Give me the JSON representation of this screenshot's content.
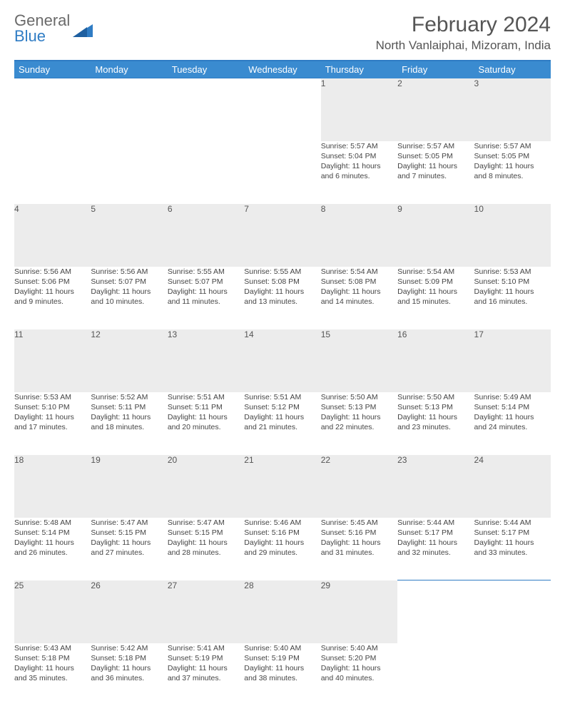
{
  "brand": {
    "first": "General",
    "second": "Blue"
  },
  "colors": {
    "brand_gray": "#6a6a6a",
    "brand_blue": "#2f7cc4",
    "header_bg": "#3a8bd0",
    "daynum_bg": "#ececec",
    "text": "#444444",
    "white": "#ffffff"
  },
  "typography": {
    "month_fontsize": 30,
    "location_fontsize": 17,
    "weekday_fontsize": 13,
    "daynum_fontsize": 12,
    "cell_fontsize": 10.5
  },
  "title": "February 2024",
  "location": "North Vanlaiphai, Mizoram, India",
  "weekdays": [
    "Sunday",
    "Monday",
    "Tuesday",
    "Wednesday",
    "Thursday",
    "Friday",
    "Saturday"
  ],
  "weeks": [
    {
      "nums": [
        "",
        "",
        "",
        "",
        "1",
        "2",
        "3"
      ],
      "cells": [
        {
          "empty": true
        },
        {
          "empty": true
        },
        {
          "empty": true
        },
        {
          "empty": true
        },
        {
          "sunrise": "Sunrise: 5:57 AM",
          "sunset": "Sunset: 5:04 PM",
          "day1": "Daylight: 11 hours",
          "day2": "and 6 minutes."
        },
        {
          "sunrise": "Sunrise: 5:57 AM",
          "sunset": "Sunset: 5:05 PM",
          "day1": "Daylight: 11 hours",
          "day2": "and 7 minutes."
        },
        {
          "sunrise": "Sunrise: 5:57 AM",
          "sunset": "Sunset: 5:05 PM",
          "day1": "Daylight: 11 hours",
          "day2": "and 8 minutes."
        }
      ]
    },
    {
      "nums": [
        "4",
        "5",
        "6",
        "7",
        "8",
        "9",
        "10"
      ],
      "cells": [
        {
          "sunrise": "Sunrise: 5:56 AM",
          "sunset": "Sunset: 5:06 PM",
          "day1": "Daylight: 11 hours",
          "day2": "and 9 minutes."
        },
        {
          "sunrise": "Sunrise: 5:56 AM",
          "sunset": "Sunset: 5:07 PM",
          "day1": "Daylight: 11 hours",
          "day2": "and 10 minutes."
        },
        {
          "sunrise": "Sunrise: 5:55 AM",
          "sunset": "Sunset: 5:07 PM",
          "day1": "Daylight: 11 hours",
          "day2": "and 11 minutes."
        },
        {
          "sunrise": "Sunrise: 5:55 AM",
          "sunset": "Sunset: 5:08 PM",
          "day1": "Daylight: 11 hours",
          "day2": "and 13 minutes."
        },
        {
          "sunrise": "Sunrise: 5:54 AM",
          "sunset": "Sunset: 5:08 PM",
          "day1": "Daylight: 11 hours",
          "day2": "and 14 minutes."
        },
        {
          "sunrise": "Sunrise: 5:54 AM",
          "sunset": "Sunset: 5:09 PM",
          "day1": "Daylight: 11 hours",
          "day2": "and 15 minutes."
        },
        {
          "sunrise": "Sunrise: 5:53 AM",
          "sunset": "Sunset: 5:10 PM",
          "day1": "Daylight: 11 hours",
          "day2": "and 16 minutes."
        }
      ]
    },
    {
      "nums": [
        "11",
        "12",
        "13",
        "14",
        "15",
        "16",
        "17"
      ],
      "cells": [
        {
          "sunrise": "Sunrise: 5:53 AM",
          "sunset": "Sunset: 5:10 PM",
          "day1": "Daylight: 11 hours",
          "day2": "and 17 minutes."
        },
        {
          "sunrise": "Sunrise: 5:52 AM",
          "sunset": "Sunset: 5:11 PM",
          "day1": "Daylight: 11 hours",
          "day2": "and 18 minutes."
        },
        {
          "sunrise": "Sunrise: 5:51 AM",
          "sunset": "Sunset: 5:11 PM",
          "day1": "Daylight: 11 hours",
          "day2": "and 20 minutes."
        },
        {
          "sunrise": "Sunrise: 5:51 AM",
          "sunset": "Sunset: 5:12 PM",
          "day1": "Daylight: 11 hours",
          "day2": "and 21 minutes."
        },
        {
          "sunrise": "Sunrise: 5:50 AM",
          "sunset": "Sunset: 5:13 PM",
          "day1": "Daylight: 11 hours",
          "day2": "and 22 minutes."
        },
        {
          "sunrise": "Sunrise: 5:50 AM",
          "sunset": "Sunset: 5:13 PM",
          "day1": "Daylight: 11 hours",
          "day2": "and 23 minutes."
        },
        {
          "sunrise": "Sunrise: 5:49 AM",
          "sunset": "Sunset: 5:14 PM",
          "day1": "Daylight: 11 hours",
          "day2": "and 24 minutes."
        }
      ]
    },
    {
      "nums": [
        "18",
        "19",
        "20",
        "21",
        "22",
        "23",
        "24"
      ],
      "cells": [
        {
          "sunrise": "Sunrise: 5:48 AM",
          "sunset": "Sunset: 5:14 PM",
          "day1": "Daylight: 11 hours",
          "day2": "and 26 minutes."
        },
        {
          "sunrise": "Sunrise: 5:47 AM",
          "sunset": "Sunset: 5:15 PM",
          "day1": "Daylight: 11 hours",
          "day2": "and 27 minutes."
        },
        {
          "sunrise": "Sunrise: 5:47 AM",
          "sunset": "Sunset: 5:15 PM",
          "day1": "Daylight: 11 hours",
          "day2": "and 28 minutes."
        },
        {
          "sunrise": "Sunrise: 5:46 AM",
          "sunset": "Sunset: 5:16 PM",
          "day1": "Daylight: 11 hours",
          "day2": "and 29 minutes."
        },
        {
          "sunrise": "Sunrise: 5:45 AM",
          "sunset": "Sunset: 5:16 PM",
          "day1": "Daylight: 11 hours",
          "day2": "and 31 minutes."
        },
        {
          "sunrise": "Sunrise: 5:44 AM",
          "sunset": "Sunset: 5:17 PM",
          "day1": "Daylight: 11 hours",
          "day2": "and 32 minutes."
        },
        {
          "sunrise": "Sunrise: 5:44 AM",
          "sunset": "Sunset: 5:17 PM",
          "day1": "Daylight: 11 hours",
          "day2": "and 33 minutes."
        }
      ]
    },
    {
      "nums": [
        "25",
        "26",
        "27",
        "28",
        "29",
        "",
        ""
      ],
      "cells": [
        {
          "sunrise": "Sunrise: 5:43 AM",
          "sunset": "Sunset: 5:18 PM",
          "day1": "Daylight: 11 hours",
          "day2": "and 35 minutes."
        },
        {
          "sunrise": "Sunrise: 5:42 AM",
          "sunset": "Sunset: 5:18 PM",
          "day1": "Daylight: 11 hours",
          "day2": "and 36 minutes."
        },
        {
          "sunrise": "Sunrise: 5:41 AM",
          "sunset": "Sunset: 5:19 PM",
          "day1": "Daylight: 11 hours",
          "day2": "and 37 minutes."
        },
        {
          "sunrise": "Sunrise: 5:40 AM",
          "sunset": "Sunset: 5:19 PM",
          "day1": "Daylight: 11 hours",
          "day2": "and 38 minutes."
        },
        {
          "sunrise": "Sunrise: 5:40 AM",
          "sunset": "Sunset: 5:20 PM",
          "day1": "Daylight: 11 hours",
          "day2": "and 40 minutes."
        },
        {
          "empty": true
        },
        {
          "empty": true
        }
      ]
    }
  ]
}
